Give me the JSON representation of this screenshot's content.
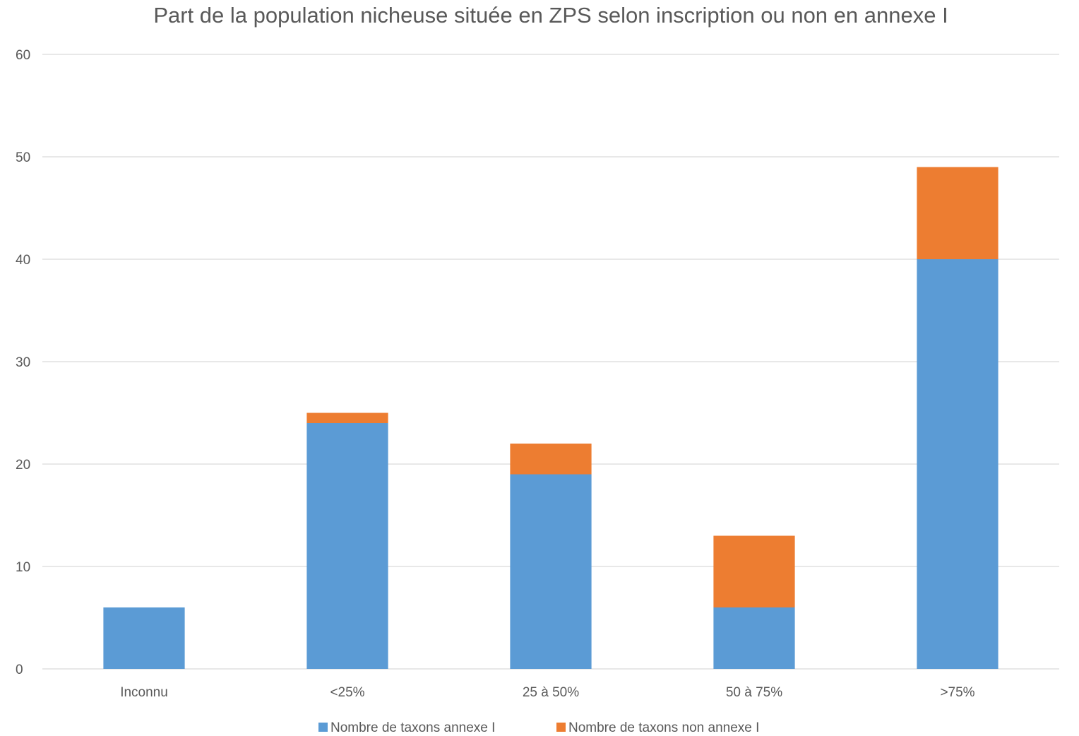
{
  "chart_data": {
    "type": "bar",
    "stacked": true,
    "title": "Part de la population nicheuse située en ZPS selon inscription ou non en annexe I",
    "xlabel": "",
    "ylabel": "",
    "categories": [
      "Inconnu",
      "<25%",
      "25 à 50%",
      "50 à 75%",
      ">75%"
    ],
    "series": [
      {
        "name": "Nombre de taxons annexe I",
        "values": [
          6,
          24,
          19,
          6,
          40
        ],
        "color": "#5b9bd5"
      },
      {
        "name": "Nombre de taxons non annexe I",
        "values": [
          0,
          1,
          3,
          7,
          9
        ],
        "color": "#ed7d31"
      }
    ],
    "ylim": [
      0,
      60
    ],
    "yticks": [
      0,
      10,
      20,
      30,
      40,
      50,
      60
    ],
    "grid": true,
    "legend_position": "bottom"
  }
}
